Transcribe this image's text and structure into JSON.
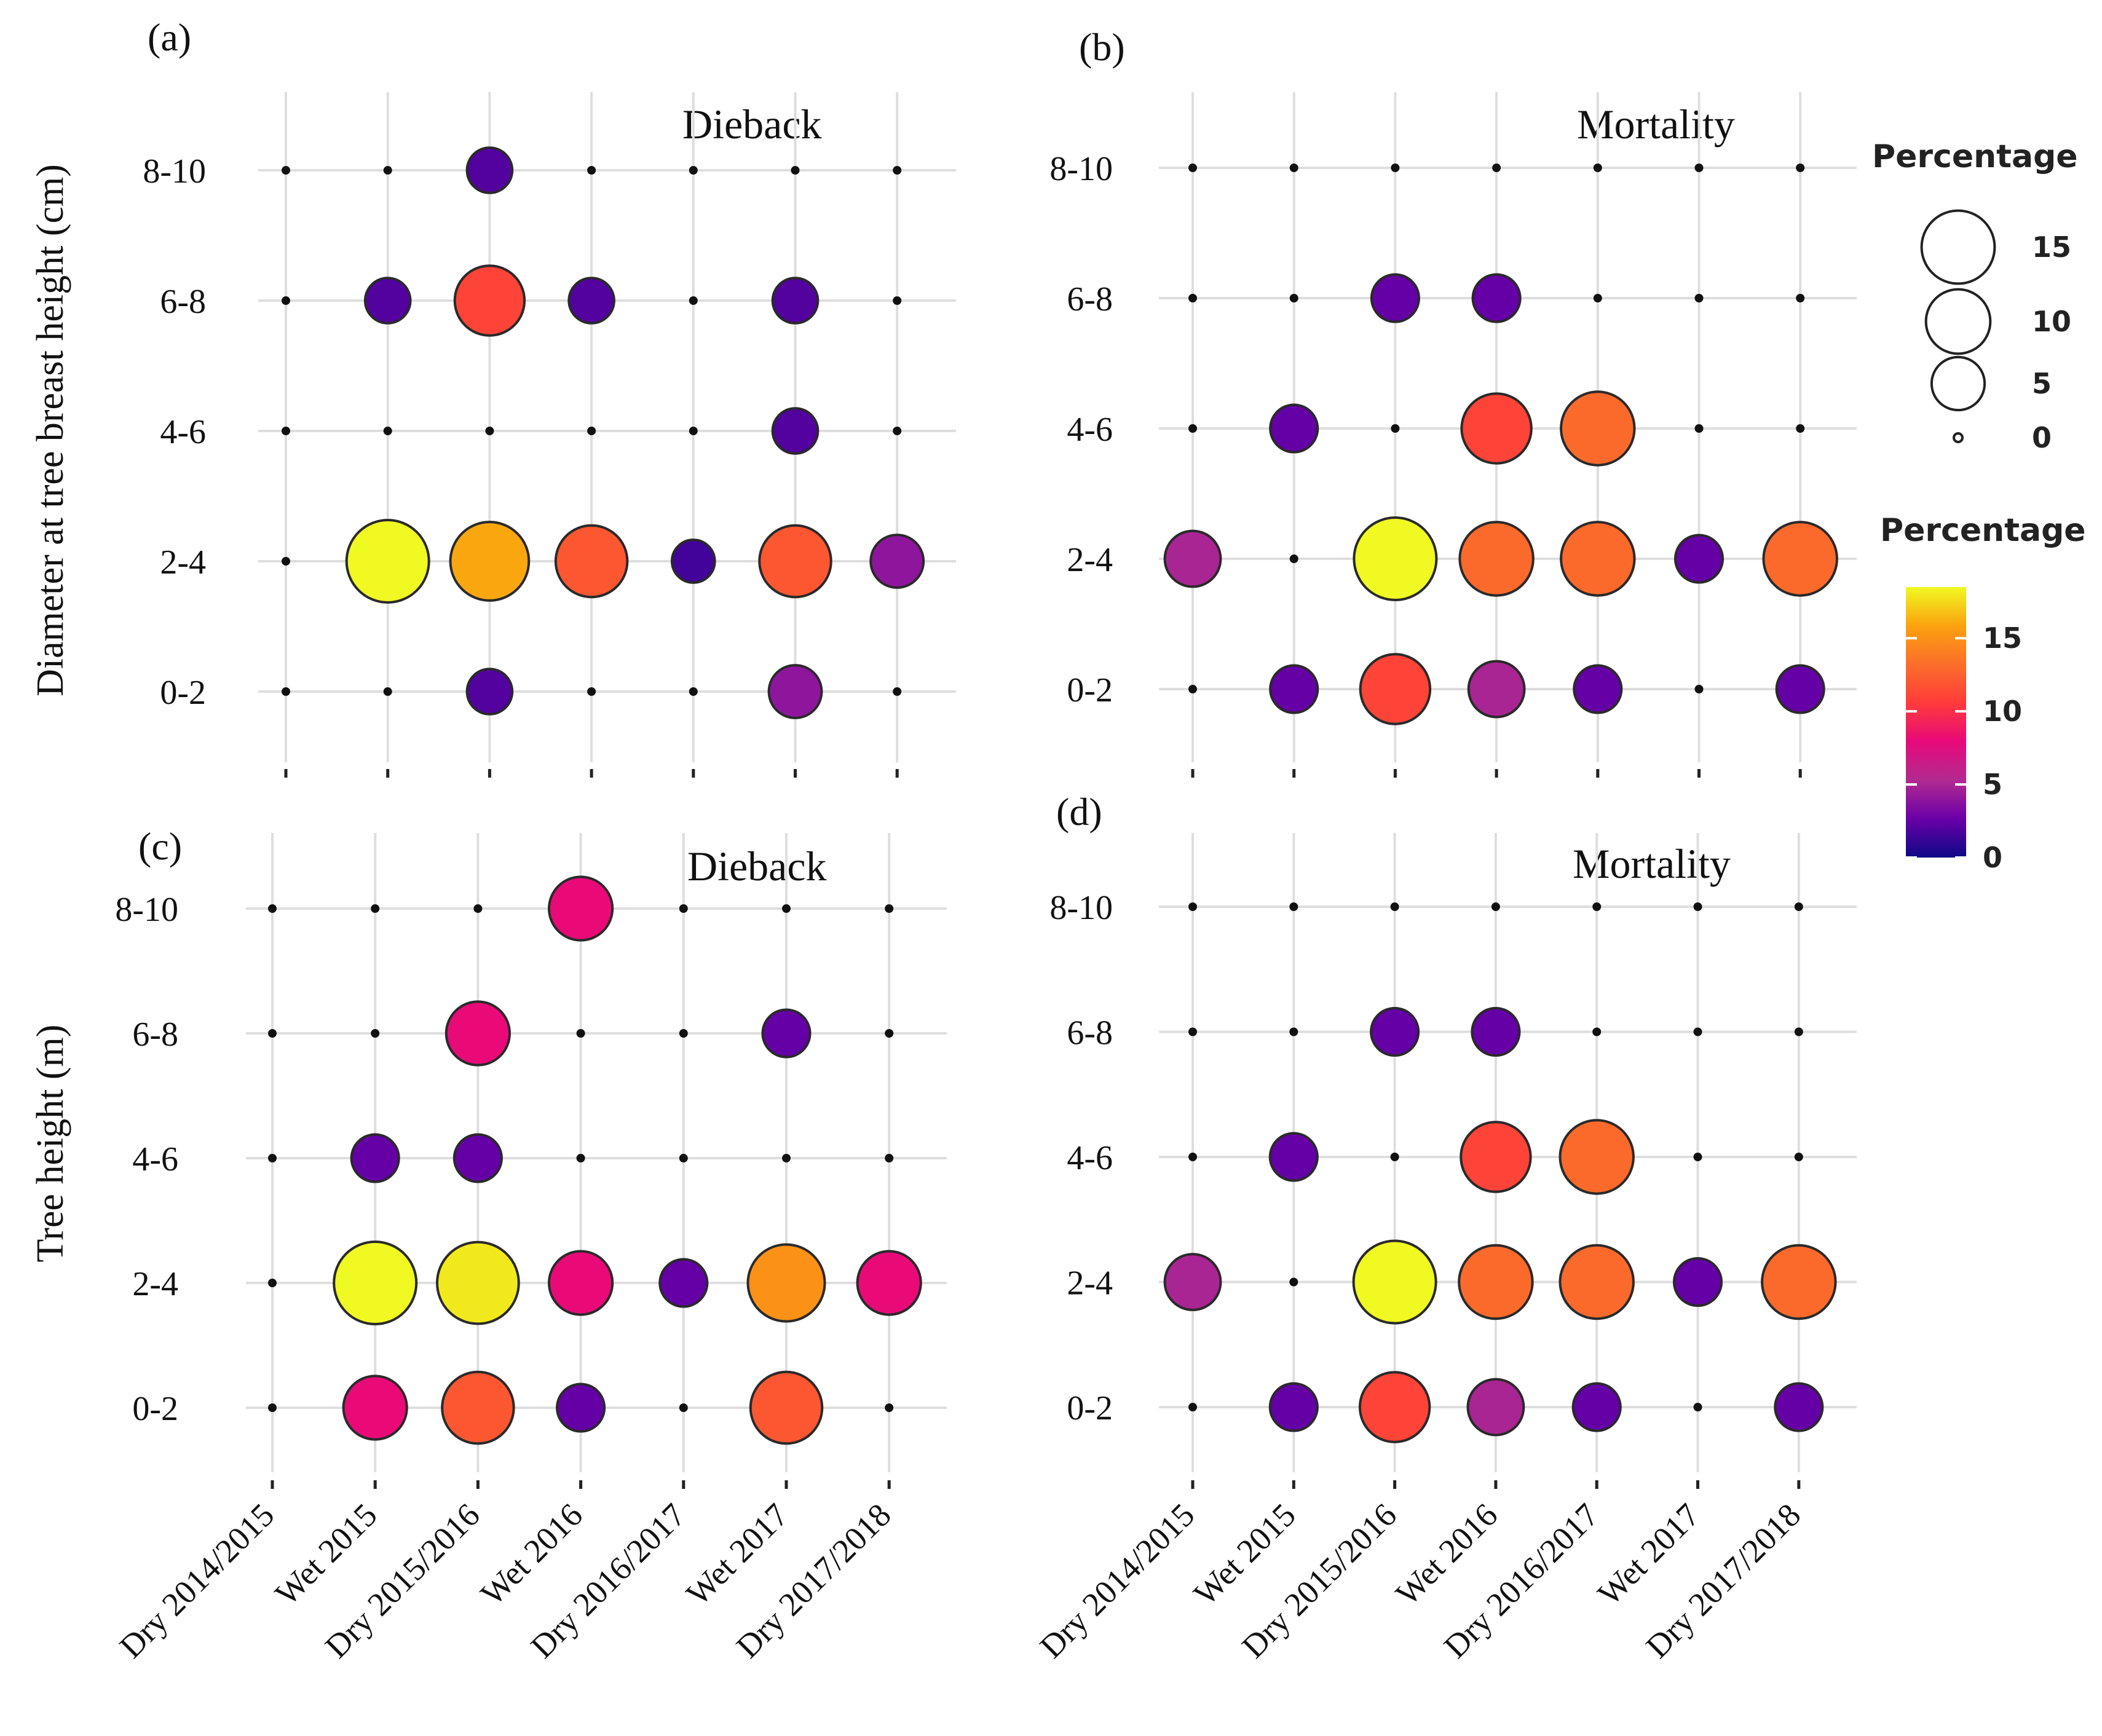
{
  "figure": {
    "ylabel_top": "Diameter at tree breast height (cm)",
    "ylabel_bottom": "Tree height (m)"
  },
  "legend": {
    "size_title": "Percentage",
    "size_breaks": [
      15,
      10,
      5,
      0
    ],
    "size_labels": [
      "15",
      "10",
      "5",
      "0"
    ],
    "color_title": "Percentage",
    "color_breaks": [
      15,
      10,
      5,
      0
    ],
    "color_labels": [
      "15",
      "10",
      "5",
      "0"
    ],
    "color_range": [
      0,
      18.5
    ],
    "palette": [
      "#0d0887",
      "#6a00a8",
      "#b12a90",
      "#e8097a",
      "#ff3b3b",
      "#fb6e2a",
      "#fba20e",
      "#f0f921"
    ]
  },
  "chart_data": [
    {
      "type": "scatter",
      "panel": "(a)",
      "title": "Dieback",
      "ylabel": "Diameter at tree breast height (cm)",
      "xlabel": "",
      "categories": [
        "Dry 2014/2015",
        "Wet 2015",
        "Dry 2015/2016",
        "Wet 2016",
        "Dry 2016/2017",
        "Wet 2017",
        "Dry 2017/2018"
      ],
      "y_categories": [
        "0-2",
        "2-4",
        "4-6",
        "6-8",
        "8-10"
      ],
      "show_x_labels": false,
      "values": {
        "8-10": [
          0,
          0,
          2,
          0,
          0,
          0,
          0
        ],
        "6-8": [
          0,
          2,
          11,
          2,
          0,
          2,
          0
        ],
        "4-6": [
          0,
          0,
          0,
          0,
          0,
          2,
          0
        ],
        "2-4": [
          0,
          18.5,
          16,
          12,
          1.5,
          12,
          4
        ],
        "0-2": [
          0,
          0,
          2,
          0,
          0,
          4,
          0
        ]
      }
    },
    {
      "type": "scatter",
      "panel": "(b)",
      "title": "Mortality",
      "ylabel": "",
      "xlabel": "",
      "categories": [
        "Dry 2014/2015",
        "Wet 2015",
        "Dry 2015/2016",
        "Wet 2016",
        "Dry 2016/2017",
        "Wet 2017",
        "Dry 2017/2018"
      ],
      "y_categories": [
        "0-2",
        "2-4",
        "4-6",
        "6-8",
        "8-10"
      ],
      "show_x_labels": false,
      "values": {
        "8-10": [
          0,
          0,
          0,
          0,
          0,
          0,
          0
        ],
        "6-8": [
          0,
          0,
          2.5,
          2.5,
          0,
          0,
          0
        ],
        "4-6": [
          0,
          2.5,
          0,
          11,
          13,
          0,
          0
        ],
        "2-4": [
          5,
          0,
          18.5,
          13,
          13,
          2.5,
          13
        ],
        "0-2": [
          0,
          2.5,
          11,
          5,
          2.5,
          0,
          2.5
        ]
      }
    },
    {
      "type": "scatter",
      "panel": "(c)",
      "title": "Dieback",
      "ylabel": "Tree height (m)",
      "xlabel": "",
      "categories": [
        "Dry 2014/2015",
        "Wet 2015",
        "Dry 2015/2016",
        "Wet 2016",
        "Dry 2016/2017",
        "Wet 2017",
        "Dry 2017/2018"
      ],
      "y_categories": [
        "0-2",
        "2-4",
        "4-6",
        "6-8",
        "8-10"
      ],
      "show_x_labels": true,
      "values": {
        "8-10": [
          0,
          0,
          0,
          8,
          0,
          0,
          0
        ],
        "6-8": [
          0,
          0,
          8,
          0,
          0,
          2.5,
          0
        ],
        "4-6": [
          0,
          2.5,
          2.5,
          0,
          0,
          0,
          0
        ],
        "2-4": [
          0,
          18.5,
          18,
          8,
          2.5,
          15,
          8
        ],
        "0-2": [
          0,
          8,
          12,
          2.5,
          0,
          12,
          0
        ]
      }
    },
    {
      "type": "scatter",
      "panel": "(d)",
      "title": "Mortality",
      "ylabel": "",
      "xlabel": "",
      "categories": [
        "Dry 2014/2015",
        "Wet 2015",
        "Dry 2015/2016",
        "Wet 2016",
        "Dry 2016/2017",
        "Wet 2017",
        "Dry 2017/2018"
      ],
      "y_categories": [
        "0-2",
        "2-4",
        "4-6",
        "6-8",
        "8-10"
      ],
      "show_x_labels": true,
      "values": {
        "8-10": [
          0,
          0,
          0,
          0,
          0,
          0,
          0
        ],
        "6-8": [
          0,
          0,
          2.5,
          2.5,
          0,
          0,
          0
        ],
        "4-6": [
          0,
          2.5,
          0,
          11,
          13,
          0,
          0
        ],
        "2-4": [
          5,
          0,
          18.5,
          13,
          13,
          2.5,
          13
        ],
        "0-2": [
          0,
          2.5,
          11,
          5,
          2.5,
          0,
          2.5
        ]
      }
    }
  ]
}
